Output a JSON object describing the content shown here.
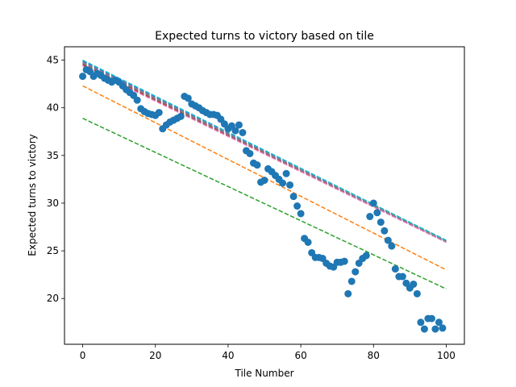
{
  "chart_data": {
    "type": "scatter",
    "title": "Expected turns to victory based on tile",
    "xlabel": "Tile Number",
    "ylabel": "Expected turns to victory",
    "xlim": [
      -5,
      105
    ],
    "ylim": [
      15.2,
      46.4
    ],
    "x_ticks": [
      "0",
      "20",
      "40",
      "60",
      "80",
      "100"
    ],
    "y_ticks": [
      "20",
      "25",
      "30",
      "35",
      "40",
      "45"
    ],
    "grid": false,
    "scatter": {
      "color": "#1f77b4",
      "x": [
        0,
        1,
        2,
        3,
        4,
        5,
        6,
        7,
        8,
        9,
        10,
        11,
        12,
        13,
        14,
        15,
        16,
        17,
        18,
        19,
        20,
        21,
        22,
        23,
        24,
        25,
        26,
        27,
        28,
        29,
        30,
        31,
        32,
        33,
        34,
        35,
        36,
        37,
        38,
        39,
        40,
        41,
        42,
        43,
        44,
        45,
        46,
        47,
        48,
        49,
        50,
        51,
        52,
        53,
        54,
        55,
        56,
        57,
        58,
        59,
        60,
        61,
        62,
        63,
        64,
        65,
        66,
        67,
        68,
        69,
        70,
        71,
        72,
        73,
        74,
        75,
        76,
        77,
        78,
        79,
        80,
        81,
        82,
        83,
        84,
        85,
        86,
        87,
        88,
        89,
        90,
        91,
        92,
        93,
        94,
        95,
        96,
        97,
        98,
        99
      ],
      "y": [
        43.3,
        44.0,
        43.8,
        43.3,
        43.6,
        43.4,
        43.1,
        42.9,
        42.7,
        42.9,
        42.7,
        42.3,
        41.9,
        41.6,
        41.3,
        40.8,
        39.9,
        39.6,
        39.4,
        39.3,
        39.2,
        39.5,
        37.8,
        38.2,
        38.5,
        38.7,
        38.9,
        39.1,
        41.2,
        41.0,
        40.4,
        40.2,
        40.0,
        39.7,
        39.5,
        39.3,
        39.3,
        39.2,
        38.8,
        38.3,
        37.8,
        38.1,
        37.6,
        38.2,
        37.4,
        35.5,
        35.2,
        34.2,
        34.0,
        32.2,
        32.4,
        33.6,
        33.3,
        32.9,
        32.5,
        32.1,
        33.1,
        31.9,
        30.7,
        29.7,
        28.9,
        26.3,
        25.9,
        24.8,
        24.3,
        24.3,
        24.2,
        23.7,
        23.4,
        23.3,
        23.8,
        23.8,
        23.9,
        20.5,
        21.8,
        22.8,
        23.7,
        24.2,
        24.5,
        28.6,
        30.0,
        29.0,
        28.0,
        27.1,
        26.1,
        25.5,
        23.1,
        22.3,
        22.3,
        21.6,
        21.1,
        21.5,
        20.5,
        17.5,
        16.8,
        17.9,
        17.9,
        16.8,
        17.5,
        16.9
      ]
    },
    "lines": [
      {
        "color": "#1f77b4",
        "x": [
          0,
          100
        ],
        "y": [
          44.9,
          26.1
        ]
      },
      {
        "color": "#ff7f0e",
        "x": [
          0,
          100
        ],
        "y": [
          42.3,
          23.0
        ]
      },
      {
        "color": "#2ca02c",
        "x": [
          0,
          100
        ],
        "y": [
          38.9,
          21.0
        ]
      },
      {
        "color": "#d62728",
        "x": [
          0,
          100
        ],
        "y": [
          44.5,
          25.9
        ]
      },
      {
        "color": "#9467bd",
        "x": [
          0,
          100
        ],
        "y": [
          44.8,
          26.0
        ]
      },
      {
        "color": "#8c564b",
        "x": [
          0,
          100
        ],
        "y": [
          44.6,
          26.0
        ]
      },
      {
        "color": "#e377c2",
        "x": [
          0,
          100
        ],
        "y": [
          44.4,
          25.9
        ]
      },
      {
        "color": "#7f7f7f",
        "x": [
          0,
          100
        ],
        "y": [
          44.7,
          26.0
        ]
      },
      {
        "color": "#17becf",
        "x": [
          0,
          100
        ],
        "y": [
          45.0,
          26.1
        ]
      }
    ]
  }
}
